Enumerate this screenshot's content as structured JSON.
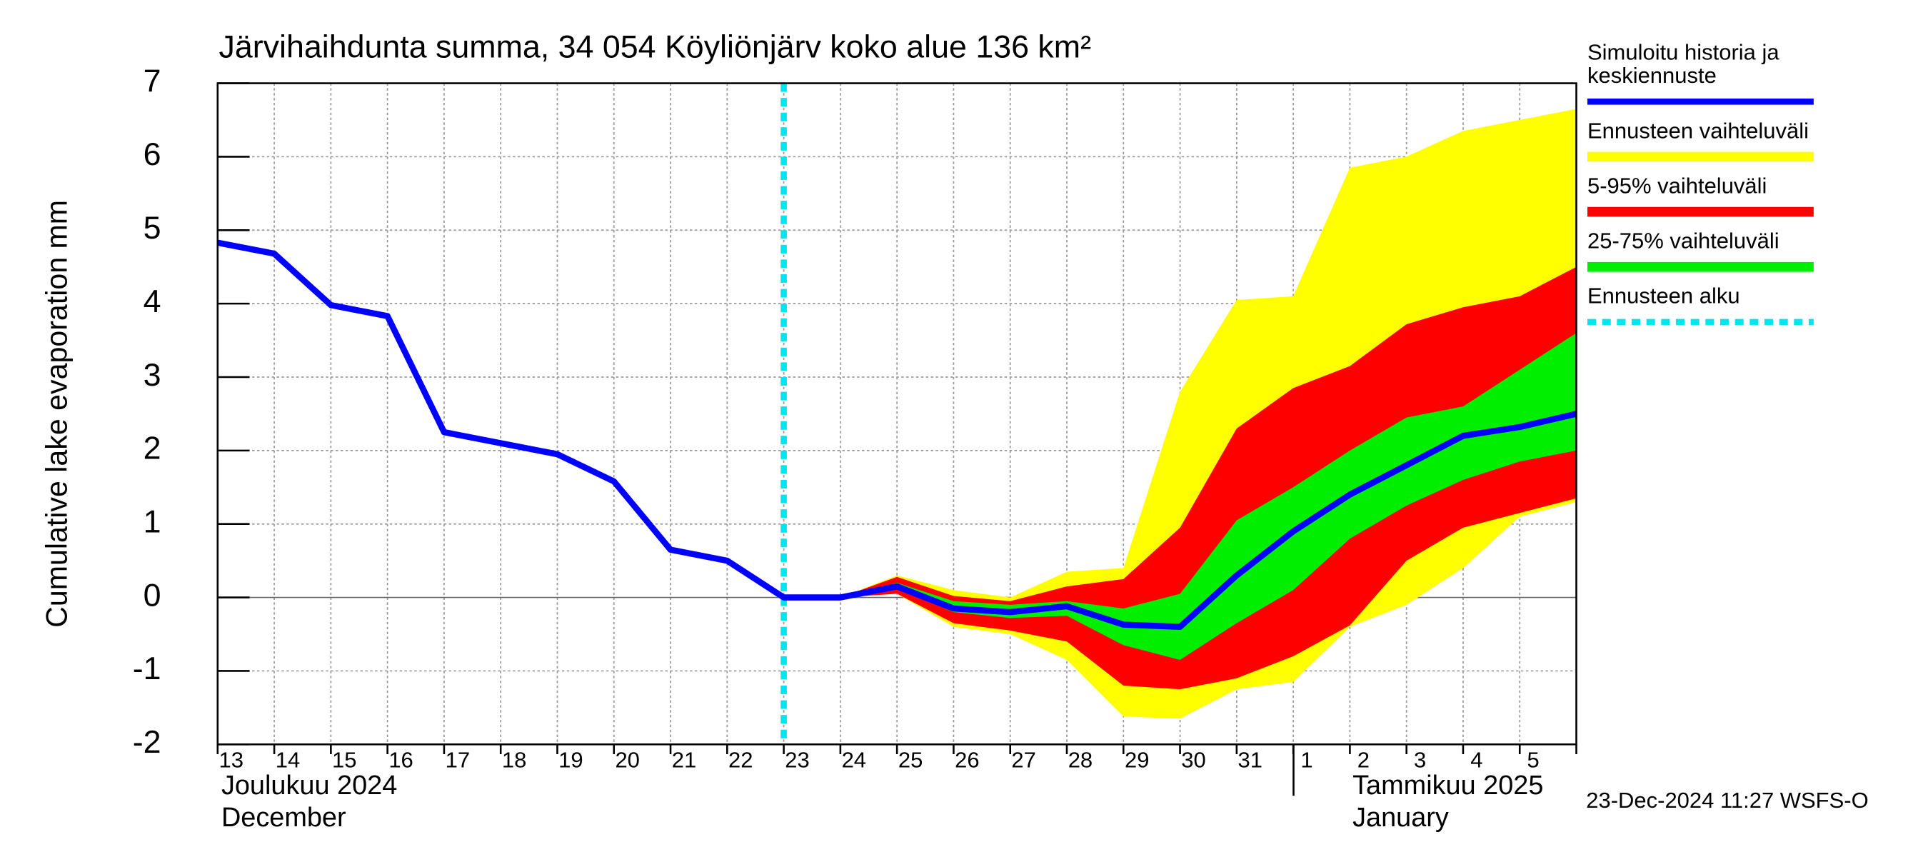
{
  "chart_data": {
    "type": "line",
    "title": "Järvihaihdunta summa, 34 054 Köyliönjärv koko alue 136 km²",
    "y_label": "Cumulative lake evaporation   mm",
    "month_labels": [
      [
        "Joulukuu  2024",
        "December"
      ],
      [
        "Tammikuu  2025",
        "January"
      ]
    ],
    "timestamp": "23-Dec-2024 11:27 WSFS-O",
    "categories": [
      "13",
      "14",
      "15",
      "16",
      "17",
      "18",
      "19",
      "20",
      "21",
      "22",
      "23",
      "24",
      "25",
      "26",
      "27",
      "28",
      "29",
      "30",
      "31",
      "1",
      "2",
      "3",
      "4",
      "5",
      null
    ],
    "ylim": [
      -2,
      7
    ],
    "yticks": [
      -2,
      -1,
      0,
      1,
      2,
      3,
      4,
      5,
      6,
      7
    ],
    "grid": true,
    "bands": [
      {
        "name": "Ennusteen vaihteluväli",
        "color": "#ffff00",
        "low": [
          null,
          null,
          null,
          null,
          null,
          null,
          null,
          null,
          null,
          null,
          null,
          0,
          0.05,
          -0.4,
          -0.5,
          -0.85,
          -1.62,
          -1.65,
          -1.25,
          -1.15,
          -0.4,
          -0.1,
          0.4,
          1.1,
          1.3
        ],
        "high": [
          null,
          null,
          null,
          null,
          null,
          null,
          null,
          null,
          null,
          null,
          null,
          0,
          0.3,
          0.1,
          0.0,
          0.35,
          0.4,
          2.8,
          4.05,
          4.1,
          5.85,
          6.0,
          6.35,
          6.5,
          6.65
        ]
      },
      {
        "name": "5-95% vaihteluväli",
        "color": "#ff0000",
        "low": [
          null,
          null,
          null,
          null,
          null,
          null,
          null,
          null,
          null,
          null,
          null,
          0,
          0.05,
          -0.35,
          -0.45,
          -0.6,
          -1.2,
          -1.25,
          -1.1,
          -0.8,
          -0.38,
          0.5,
          0.95,
          1.15,
          1.35
        ],
        "high": [
          null,
          null,
          null,
          null,
          null,
          null,
          null,
          null,
          null,
          null,
          null,
          0,
          0.28,
          0.02,
          -0.05,
          0.15,
          0.25,
          0.95,
          2.3,
          2.85,
          3.15,
          3.72,
          3.95,
          4.1,
          4.5
        ]
      },
      {
        "name": "25-75% vaihteluväli",
        "color": "#00ee00",
        "low": [
          null,
          null,
          null,
          null,
          null,
          null,
          null,
          null,
          null,
          null,
          null,
          0,
          0.12,
          -0.2,
          -0.28,
          -0.25,
          -0.65,
          -0.85,
          -0.35,
          0.1,
          0.8,
          1.25,
          1.6,
          1.85,
          2.0
        ],
        "high": [
          null,
          null,
          null,
          null,
          null,
          null,
          null,
          null,
          null,
          null,
          null,
          0,
          0.2,
          -0.05,
          -0.1,
          -0.05,
          -0.15,
          0.05,
          1.05,
          1.5,
          2.0,
          2.45,
          2.6,
          3.1,
          3.6
        ]
      }
    ],
    "series": [
      {
        "name": "Simuloitu historia ja keskiennuste",
        "color": "#0000ff",
        "values": [
          4.83,
          4.68,
          3.98,
          3.83,
          2.25,
          2.1,
          1.95,
          1.58,
          0.65,
          0.5,
          0,
          0,
          0.15,
          -0.15,
          -0.2,
          -0.12,
          -0.37,
          -0.4,
          0.3,
          0.9,
          1.4,
          1.8,
          2.2,
          2.32,
          2.5
        ]
      }
    ],
    "forecast_start": {
      "name": "Ennusteen alku",
      "color": "#00e5ee",
      "x": "23"
    }
  }
}
